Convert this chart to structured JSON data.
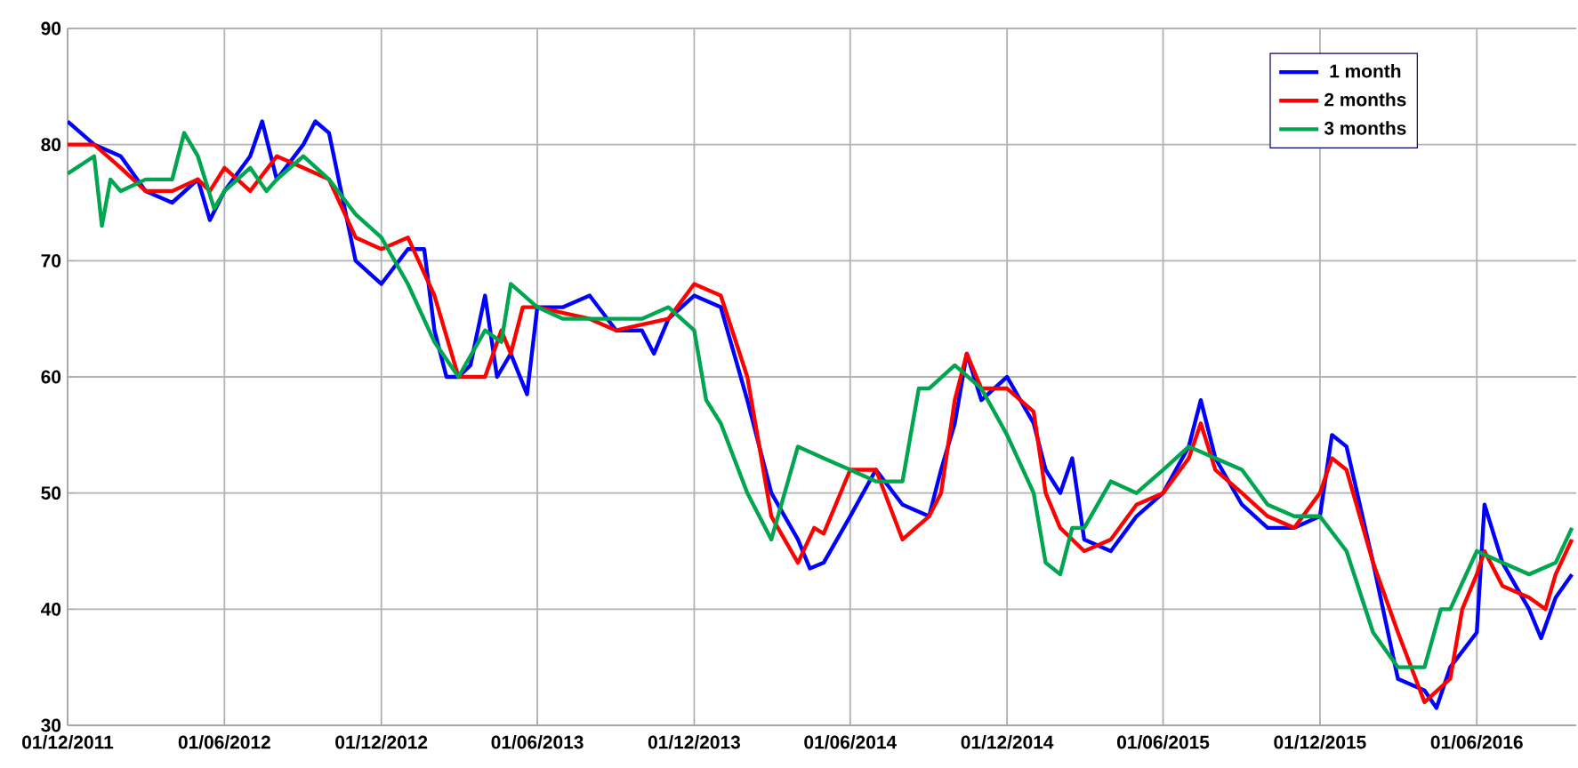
{
  "chart_data": {
    "type": "line",
    "xlim": [
      "2011-12-01",
      "2016-09-25"
    ],
    "ylim": [
      30,
      90
    ],
    "yticks": [
      30,
      40,
      50,
      60,
      70,
      80,
      90
    ],
    "xticks": [
      {
        "value": "2011-12-01",
        "label": "01/12/2011"
      },
      {
        "value": "2012-06-01",
        "label": "01/06/2012"
      },
      {
        "value": "2012-12-01",
        "label": "01/12/2012"
      },
      {
        "value": "2013-06-01",
        "label": "01/06/2013"
      },
      {
        "value": "2013-12-01",
        "label": "01/12/2013"
      },
      {
        "value": "2014-06-01",
        "label": "01/06/2014"
      },
      {
        "value": "2014-12-01",
        "label": "01/12/2014"
      },
      {
        "value": "2015-06-01",
        "label": "01/06/2015"
      },
      {
        "value": "2015-12-01",
        "label": "01/12/2015"
      },
      {
        "value": "2016-06-01",
        "label": "01/06/2016"
      }
    ],
    "grid": true,
    "legend": "top right",
    "marker": "none",
    "line_style": "solid",
    "series": [
      {
        "name": "1 month",
        "color": "#0000ff",
        "x": [
          "2011-12-01",
          "2012-01-01",
          "2012-02-01",
          "2012-03-01",
          "2012-04-01",
          "2012-05-01",
          "2012-05-15",
          "2012-06-01",
          "2012-07-01",
          "2012-07-15",
          "2012-08-01",
          "2012-09-01",
          "2012-09-15",
          "2012-10-01",
          "2012-10-15",
          "2012-11-01",
          "2012-12-01",
          "2013-01-01",
          "2013-01-20",
          "2013-02-01",
          "2013-02-15",
          "2013-03-01",
          "2013-03-15",
          "2013-04-01",
          "2013-04-15",
          "2013-05-01",
          "2013-05-20",
          "2013-06-01",
          "2013-07-01",
          "2013-08-01",
          "2013-09-01",
          "2013-10-01",
          "2013-10-15",
          "2013-11-01",
          "2013-12-01",
          "2014-01-01",
          "2014-02-01",
          "2014-03-01",
          "2014-04-01",
          "2014-04-15",
          "2014-05-01",
          "2014-06-01",
          "2014-07-01",
          "2014-08-01",
          "2014-09-01",
          "2014-09-15",
          "2014-10-01",
          "2014-10-15",
          "2014-11-01",
          "2014-12-01",
          "2015-01-01",
          "2015-01-15",
          "2015-02-01",
          "2015-02-15",
          "2015-03-01",
          "2015-04-01",
          "2015-05-01",
          "2015-06-01",
          "2015-07-01",
          "2015-07-15",
          "2015-08-01",
          "2015-09-01",
          "2015-10-01",
          "2015-11-01",
          "2015-12-01",
          "2015-12-15",
          "2016-01-01",
          "2016-02-01",
          "2016-03-01",
          "2016-04-01",
          "2016-04-15",
          "2016-05-01",
          "2016-06-01",
          "2016-06-10",
          "2016-07-01",
          "2016-08-01",
          "2016-08-15",
          "2016-09-01",
          "2016-09-20"
        ],
        "values": [
          82,
          80,
          79,
          76,
          75,
          77,
          73.5,
          76,
          79,
          82,
          77,
          80,
          82,
          81,
          76,
          70,
          68,
          71,
          71,
          64,
          60,
          60,
          61,
          67,
          60,
          62,
          58.5,
          66,
          66,
          67,
          64,
          64,
          62,
          65,
          67,
          66,
          58,
          50,
          46,
          43.5,
          44,
          48,
          52,
          49,
          48,
          52,
          56,
          62,
          58,
          60,
          56,
          52,
          50,
          53,
          46,
          45,
          48,
          50,
          54,
          58,
          53,
          49,
          47,
          47,
          48,
          55,
          54,
          44,
          34,
          33,
          31.5,
          35,
          38,
          49,
          44,
          40,
          37.5,
          41,
          43
        ]
      },
      {
        "name": "2 months",
        "color": "#ff0000",
        "x": [
          "2011-12-01",
          "2012-01-01",
          "2012-02-01",
          "2012-03-01",
          "2012-04-01",
          "2012-05-01",
          "2012-05-15",
          "2012-06-01",
          "2012-07-01",
          "2012-08-01",
          "2012-09-01",
          "2012-10-01",
          "2012-11-01",
          "2012-12-01",
          "2013-01-01",
          "2013-02-01",
          "2013-03-01",
          "2013-04-01",
          "2013-04-20",
          "2013-05-01",
          "2013-05-15",
          "2013-06-01",
          "2013-08-01",
          "2013-09-01",
          "2013-10-01",
          "2013-11-01",
          "2013-12-01",
          "2014-01-01",
          "2014-02-01",
          "2014-03-01",
          "2014-04-01",
          "2014-04-20",
          "2014-05-01",
          "2014-06-01",
          "2014-07-01",
          "2014-08-01",
          "2014-09-01",
          "2014-09-15",
          "2014-10-01",
          "2014-10-15",
          "2014-11-01",
          "2014-12-01",
          "2015-01-01",
          "2015-01-15",
          "2015-02-01",
          "2015-03-01",
          "2015-04-01",
          "2015-05-01",
          "2015-06-01",
          "2015-07-01",
          "2015-07-15",
          "2015-08-01",
          "2015-09-01",
          "2015-10-01",
          "2015-11-01",
          "2015-12-01",
          "2015-12-15",
          "2016-01-01",
          "2016-02-01",
          "2016-03-01",
          "2016-04-01",
          "2016-05-01",
          "2016-05-15",
          "2016-06-01",
          "2016-06-10",
          "2016-07-01",
          "2016-08-01",
          "2016-08-20",
          "2016-09-01",
          "2016-09-20"
        ],
        "values": [
          80,
          80,
          78,
          76,
          76,
          77,
          76,
          78,
          76,
          79,
          78,
          77,
          72,
          71,
          72,
          67,
          60,
          60,
          64,
          62,
          66,
          66,
          65,
          64,
          64.5,
          65,
          68,
          67,
          60,
          48,
          44,
          47,
          46.5,
          52,
          52,
          46,
          48,
          50,
          58,
          62,
          59,
          59,
          57,
          50,
          47,
          45,
          46,
          49,
          50,
          53,
          56,
          52,
          50,
          48,
          47,
          50,
          53,
          52,
          44,
          38,
          32,
          34,
          40,
          43,
          45,
          42,
          41,
          40,
          43,
          46
        ]
      },
      {
        "name": "3 months",
        "color": "#00a550",
        "x": [
          "2011-12-01",
          "2012-01-01",
          "2012-01-10",
          "2012-01-20",
          "2012-02-01",
          "2012-03-01",
          "2012-04-01",
          "2012-04-15",
          "2012-05-01",
          "2012-05-20",
          "2012-06-01",
          "2012-07-01",
          "2012-07-20",
          "2012-08-01",
          "2012-09-01",
          "2012-10-01",
          "2012-11-01",
          "2012-12-01",
          "2013-01-01",
          "2013-02-01",
          "2013-03-01",
          "2013-04-01",
          "2013-04-20",
          "2013-05-01",
          "2013-06-01",
          "2013-07-01",
          "2013-09-01",
          "2013-10-01",
          "2013-11-01",
          "2013-12-01",
          "2013-12-15",
          "2014-01-01",
          "2014-02-01",
          "2014-03-01",
          "2014-04-01",
          "2014-05-01",
          "2014-06-01",
          "2014-07-01",
          "2014-08-01",
          "2014-08-20",
          "2014-09-01",
          "2014-10-01",
          "2014-11-01",
          "2014-12-01",
          "2015-01-01",
          "2015-01-15",
          "2015-02-01",
          "2015-02-15",
          "2015-03-01",
          "2015-04-01",
          "2015-05-01",
          "2015-06-01",
          "2015-07-01",
          "2015-08-01",
          "2015-09-01",
          "2015-10-01",
          "2015-11-01",
          "2015-12-01",
          "2016-01-01",
          "2016-02-01",
          "2016-03-01",
          "2016-04-01",
          "2016-04-20",
          "2016-05-01",
          "2016-06-01",
          "2016-07-01",
          "2016-08-01",
          "2016-09-01",
          "2016-09-20"
        ],
        "values": [
          77.5,
          79,
          73,
          77,
          76,
          77,
          77,
          81,
          79,
          74.5,
          76,
          78,
          76,
          77,
          79,
          77,
          74,
          72,
          68,
          63,
          60,
          64,
          63,
          68,
          66,
          65,
          65,
          65,
          66,
          64,
          58,
          56,
          50,
          46,
          54,
          53,
          52,
          51,
          51,
          59,
          59,
          61,
          59,
          55,
          50,
          44,
          43,
          47,
          47,
          51,
          50,
          52,
          54,
          53,
          52,
          49,
          48,
          48,
          45,
          38,
          35,
          35,
          40,
          40,
          45,
          44,
          43,
          44,
          47
        ]
      }
    ]
  }
}
